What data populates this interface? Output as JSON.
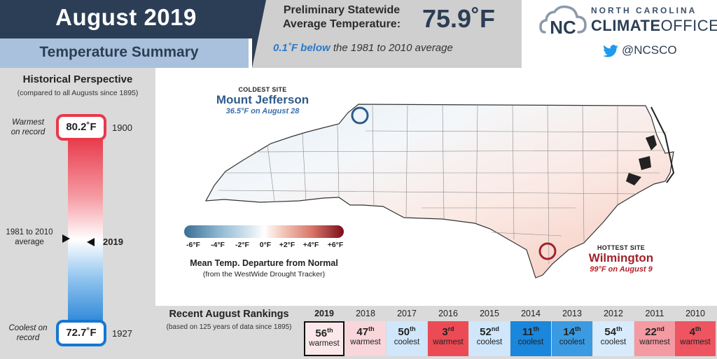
{
  "header": {
    "title": "August 2019",
    "subtitle": "Temperature Summary",
    "stat_label_line1": "Preliminary Statewide",
    "stat_label_line2": "Average Temperature:",
    "stat_value": "75.9˚F",
    "note_highlight": "0.1˚F below",
    "note_rest": "the 1981 to 2010 average"
  },
  "logo": {
    "line1": "NORTH CAROLINA",
    "line2_bold": "CLIMATE",
    "line2_light": "OFFICE",
    "monogram": "NC",
    "twitter_handle": "@NCSCO"
  },
  "historical": {
    "title": "Historical Perspective",
    "subtitle": "(compared to all Augusts since 1895)",
    "warmest_label_1": "Warmest",
    "warmest_label_2": "on record",
    "warmest_value": "80.2˚F",
    "warmest_year": "1900",
    "coolest_label_1": "Coolest on",
    "coolest_label_2": "record",
    "coolest_value": "72.7˚F",
    "coolest_year": "1927",
    "average_label_1": "1981 to 2010",
    "average_label_2": "average",
    "current_year": "2019"
  },
  "map": {
    "coldest": {
      "caption": "COLDEST SITE",
      "name": "Mount Jefferson",
      "detail": "36.5°F on August 28",
      "color": "#2e5b8a"
    },
    "hottest": {
      "caption": "HOTTEST SITE",
      "name": "Wilmington",
      "detail": "99°F on August 9",
      "color": "#a2222b"
    }
  },
  "legend": {
    "ticks": [
      "-6°F",
      "-4°F",
      "-2°F",
      "0°F",
      "+2°F",
      "+4°F",
      "+6°F"
    ],
    "title": "Mean Temp. Departure from Normal",
    "subtitle": "(from the WestWide Drought Tracker)"
  },
  "rankings": {
    "title": "Recent August Rankings",
    "subtitle": "(based on 125 years of data since 1895)",
    "items": [
      {
        "year": "2019",
        "rank": "56",
        "suffix": "th",
        "label": "warmest",
        "color": "#fce8ea"
      },
      {
        "year": "2018",
        "rank": "47",
        "suffix": "th",
        "label": "warmest",
        "color": "#f9d6da"
      },
      {
        "year": "2017",
        "rank": "50",
        "suffix": "th",
        "label": "coolest",
        "color": "#cfe6fb"
      },
      {
        "year": "2016",
        "rank": "3",
        "suffix": "rd",
        "label": "warmest",
        "color": "#ec4b55"
      },
      {
        "year": "2015",
        "rank": "52",
        "suffix": "nd",
        "label": "coolest",
        "color": "#cfe6fb"
      },
      {
        "year": "2014",
        "rank": "11",
        "suffix": "th",
        "label": "coolest",
        "color": "#1a86dc"
      },
      {
        "year": "2013",
        "rank": "14",
        "suffix": "th",
        "label": "coolest",
        "color": "#3a9ae2"
      },
      {
        "year": "2012",
        "rank": "54",
        "suffix": "th",
        "label": "coolest",
        "color": "#d7ebfc"
      },
      {
        "year": "2011",
        "rank": "22",
        "suffix": "nd",
        "label": "warmest",
        "color": "#f49aa2"
      },
      {
        "year": "2010",
        "rank": "4",
        "suffix": "th",
        "label": "warmest",
        "color": "#ee5560"
      }
    ]
  }
}
